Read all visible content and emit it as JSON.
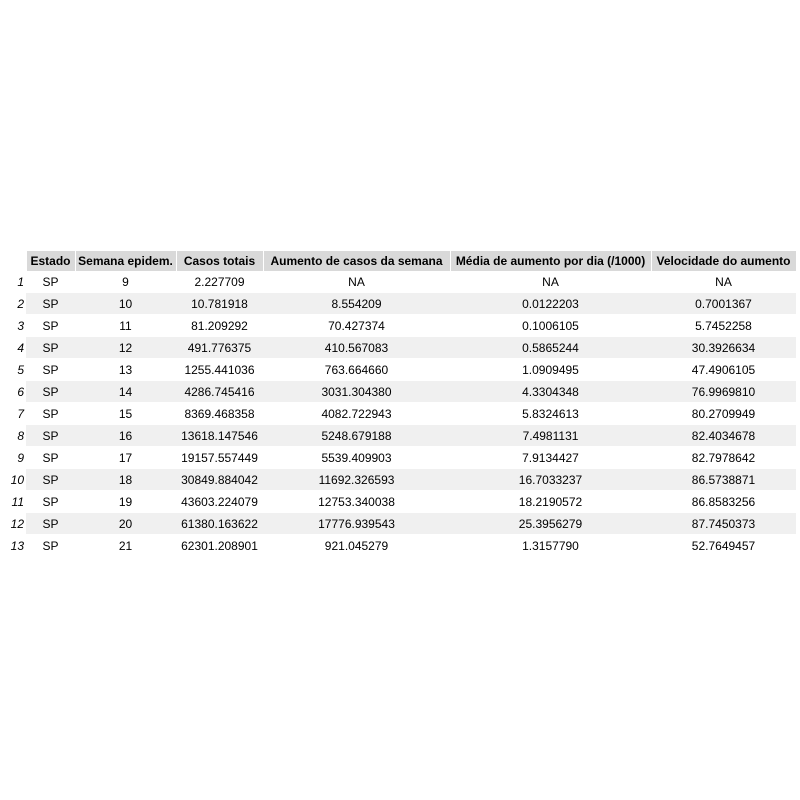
{
  "table": {
    "headers": [
      "Estado",
      "Semana epidem.",
      "Casos totais",
      "Aumento de casos da semana",
      "Média de aumento por dia (/1000)",
      "Velocidade do aumento"
    ],
    "rows": [
      {
        "idx": "1",
        "estado": "SP",
        "semana": "9",
        "casos": "2.227709",
        "aumento": "NA",
        "media": "NA",
        "velocidade": "NA"
      },
      {
        "idx": "2",
        "estado": "SP",
        "semana": "10",
        "casos": "10.781918",
        "aumento": "8.554209",
        "media": "0.0122203",
        "velocidade": "0.7001367"
      },
      {
        "idx": "3",
        "estado": "SP",
        "semana": "11",
        "casos": "81.209292",
        "aumento": "70.427374",
        "media": "0.1006105",
        "velocidade": "5.7452258"
      },
      {
        "idx": "4",
        "estado": "SP",
        "semana": "12",
        "casos": "491.776375",
        "aumento": "410.567083",
        "media": "0.5865244",
        "velocidade": "30.3926634"
      },
      {
        "idx": "5",
        "estado": "SP",
        "semana": "13",
        "casos": "1255.441036",
        "aumento": "763.664660",
        "media": "1.0909495",
        "velocidade": "47.4906105"
      },
      {
        "idx": "6",
        "estado": "SP",
        "semana": "14",
        "casos": "4286.745416",
        "aumento": "3031.304380",
        "media": "4.3304348",
        "velocidade": "76.9969810"
      },
      {
        "idx": "7",
        "estado": "SP",
        "semana": "15",
        "casos": "8369.468358",
        "aumento": "4082.722943",
        "media": "5.8324613",
        "velocidade": "80.2709949"
      },
      {
        "idx": "8",
        "estado": "SP",
        "semana": "16",
        "casos": "13618.147546",
        "aumento": "5248.679188",
        "media": "7.4981131",
        "velocidade": "82.4034678"
      },
      {
        "idx": "9",
        "estado": "SP",
        "semana": "17",
        "casos": "19157.557449",
        "aumento": "5539.409903",
        "media": "7.9134427",
        "velocidade": "82.7978642"
      },
      {
        "idx": "10",
        "estado": "SP",
        "semana": "18",
        "casos": "30849.884042",
        "aumento": "11692.326593",
        "media": "16.7033237",
        "velocidade": "86.5738871"
      },
      {
        "idx": "11",
        "estado": "SP",
        "semana": "19",
        "casos": "43603.224079",
        "aumento": "12753.340038",
        "media": "18.2190572",
        "velocidade": "86.8583256"
      },
      {
        "idx": "12",
        "estado": "SP",
        "semana": "20",
        "casos": "61380.163622",
        "aumento": "17776.939543",
        "media": "25.3956279",
        "velocidade": "87.7450373"
      },
      {
        "idx": "13",
        "estado": "SP",
        "semana": "21",
        "casos": "62301.208901",
        "aumento": "921.045279",
        "media": "1.3157790",
        "velocidade": "52.7649457"
      }
    ]
  }
}
